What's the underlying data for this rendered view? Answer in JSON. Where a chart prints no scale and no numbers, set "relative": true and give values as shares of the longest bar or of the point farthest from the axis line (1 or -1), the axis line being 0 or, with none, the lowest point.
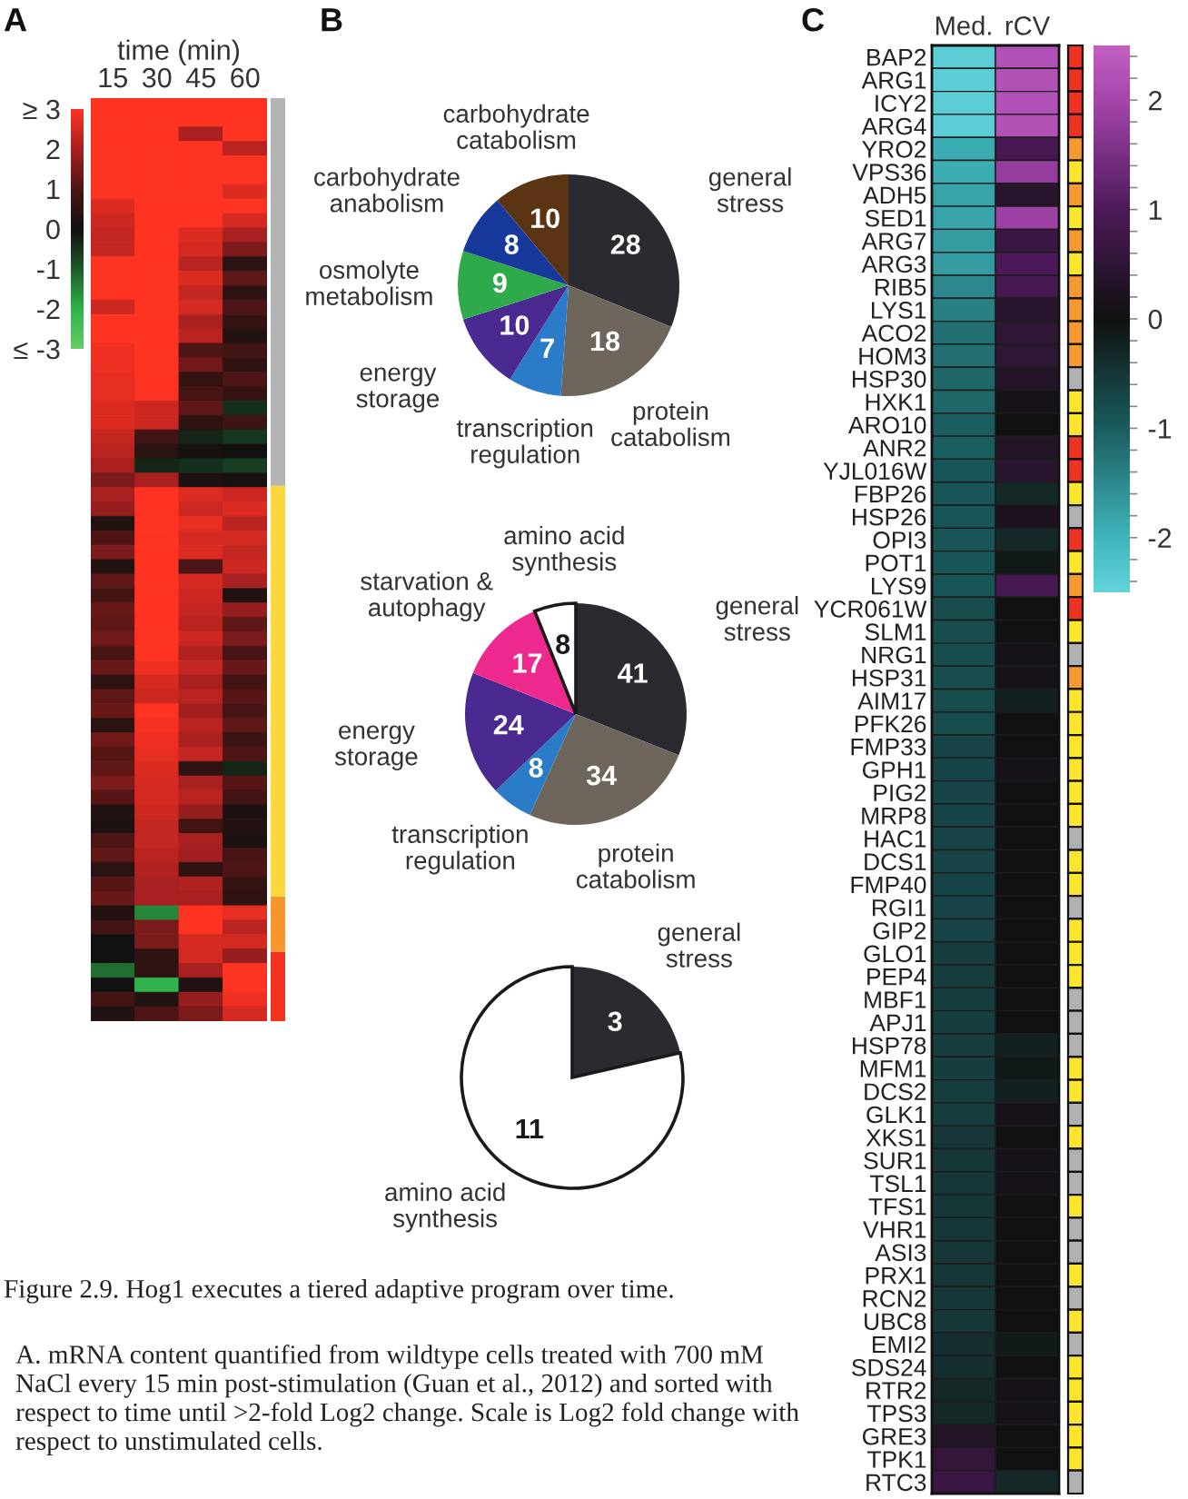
{
  "chart_data": [
    {
      "type": "heatmap",
      "title": "A",
      "xlabel": "time (min)",
      "categories": [
        "15",
        "30",
        "45",
        "60"
      ],
      "y_categories": [
        null,
        null,
        null,
        null,
        null,
        null,
        null,
        null,
        null,
        null,
        null,
        null,
        null,
        null,
        null,
        null,
        null,
        null,
        null,
        null,
        null,
        null,
        null,
        null,
        null,
        null,
        null,
        null,
        null,
        null,
        null,
        null,
        null,
        null,
        null,
        null,
        null,
        null,
        null,
        null,
        null,
        null,
        null,
        null,
        null,
        null,
        null,
        null,
        null,
        null,
        null,
        null,
        null,
        null,
        null,
        null,
        null,
        null,
        null,
        null,
        null,
        null,
        null,
        null
      ],
      "cells": [
        [
          3,
          3,
          3,
          3
        ],
        [
          3,
          3,
          3,
          3
        ],
        [
          3,
          3,
          2,
          3
        ],
        [
          3,
          3,
          3,
          2.2
        ],
        [
          3,
          3,
          3,
          3
        ],
        [
          3,
          3,
          3,
          3
        ],
        [
          3,
          3,
          3,
          2.6
        ],
        [
          2.6,
          3,
          3,
          3
        ],
        [
          2.4,
          3,
          3,
          2.5
        ],
        [
          2.3,
          3,
          2.6,
          2
        ],
        [
          2.3,
          3,
          2.5,
          1.5
        ],
        [
          3,
          3,
          2.2,
          0.4
        ],
        [
          3,
          3,
          2.6,
          1.2
        ],
        [
          3,
          3,
          2.3,
          0.5
        ],
        [
          2.4,
          3,
          2.5,
          1
        ],
        [
          3,
          3,
          2,
          0.6
        ],
        [
          3,
          3,
          2.2,
          0.3
        ],
        [
          2.8,
          3,
          1,
          0.8
        ],
        [
          2.8,
          3,
          1.4,
          0.5
        ],
        [
          2.7,
          3,
          0.6,
          1
        ],
        [
          2.7,
          3,
          0.9,
          0.6
        ],
        [
          2.6,
          2.4,
          1.2,
          -0.4
        ],
        [
          2.6,
          2.4,
          0.5,
          0.7
        ],
        [
          2.3,
          0.8,
          -0.3,
          -0.5
        ],
        [
          2.2,
          0.4,
          0.1,
          0
        ],
        [
          2,
          -0.3,
          -0.4,
          -0.6
        ],
        [
          1.5,
          2,
          0.2,
          0.1
        ],
        [
          2,
          3,
          2.6,
          2.4
        ],
        [
          1.8,
          3,
          2.4,
          2.6
        ],
        [
          0.3,
          3,
          2.7,
          2.2
        ],
        [
          1,
          3,
          2.5,
          2.5
        ],
        [
          1.5,
          3,
          2.6,
          2.3
        ],
        [
          0.3,
          3,
          1,
          2.4
        ],
        [
          1.2,
          3,
          2.5,
          2
        ],
        [
          0.8,
          3,
          2.4,
          0.3
        ],
        [
          1.3,
          3,
          2.3,
          1.8
        ],
        [
          1.2,
          3,
          2.2,
          1.2
        ],
        [
          1.4,
          3,
          2.4,
          1.5
        ],
        [
          0.9,
          3,
          2.1,
          0.9
        ],
        [
          1.3,
          2.8,
          2.3,
          1.3
        ],
        [
          0.5,
          2.5,
          2,
          0.8
        ],
        [
          1.2,
          2.4,
          2.2,
          1.1
        ],
        [
          1.3,
          3,
          1.9,
          0.9
        ],
        [
          0.4,
          2.9,
          2.2,
          1.2
        ],
        [
          1.4,
          2.8,
          2,
          0.7
        ],
        [
          1.1,
          2.7,
          2.3,
          1
        ],
        [
          1.2,
          2.6,
          0.5,
          -0.3
        ],
        [
          1.5,
          2.5,
          2,
          1.1
        ],
        [
          1.1,
          2.5,
          2.2,
          0.8
        ],
        [
          0.3,
          2.4,
          1.8,
          0.2
        ],
        [
          0.2,
          2.3,
          0.8,
          0.3
        ],
        [
          1,
          2.3,
          2,
          0.2
        ],
        [
          1.2,
          2.2,
          1.9,
          0.9
        ],
        [
          0.4,
          2.1,
          0.5,
          1
        ],
        [
          1.1,
          2,
          2.1,
          0.6
        ],
        [
          1.3,
          2,
          2,
          0.5
        ],
        [
          0.3,
          -1.5,
          3,
          2.7
        ],
        [
          0.8,
          1.5,
          3,
          2.2
        ],
        [
          0,
          1.5,
          2.5,
          2.5
        ],
        [
          0,
          0.5,
          2.5,
          1.8
        ],
        [
          -1.2,
          0.5,
          2,
          3
        ],
        [
          0,
          -2,
          0.3,
          3
        ],
        [
          0.8,
          0.3,
          1.8,
          2.8
        ],
        [
          0.3,
          1,
          1.5,
          2.5
        ]
      ],
      "clim": [
        -3,
        3
      ],
      "cticks": [
        {
          "value": -3,
          "label": "≤ -3"
        },
        -2,
        -1,
        0,
        1,
        2,
        {
          "value": 3,
          "label": "≥ 3"
        }
      ],
      "annotations": [
        "Figure 2.9. Hog1 executes a tiered adaptive program over time.",
        "A. mRNA content quantified from wildtype cells treated with 700 mM NaCl every 15 min post-stimulation (Guan et al., 2012) and sorted with respect to time until >2-fold Log2 change. Scale is Log2 fold change with respect to unstimulated cells."
      ]
    },
    {
      "type": "bar",
      "stacked": true,
      "relative": true,
      "categories": [
        null
      ],
      "series": [
        {
          "color": "#f2321e",
          "values": [
            0.075
          ]
        },
        {
          "color": "#f7952e",
          "values": [
            0.06
          ]
        },
        {
          "color": "#fbd63c",
          "values": [
            0.445
          ]
        },
        {
          "color": "#b4b4b4",
          "values": [
            0.42
          ]
        }
      ]
    },
    {
      "type": "pie",
      "title": "B",
      "categories": [
        "general\nstress",
        "protein\ncatabolism",
        "transcription\nregulation",
        "energy\nstorage",
        "osmolyte\nmetabolism",
        "carbohydrate\nanabolism",
        "carbohydrate\ncatabolism"
      ],
      "values": [
        28,
        18,
        7,
        10,
        9,
        8,
        10
      ],
      "colors": [
        "#2b2a30",
        "#6e665c",
        "#2a7cc8",
        "#4a2a90",
        "#2eaa4a",
        "#17399c",
        "#5b3414"
      ],
      "data_labels": true
    },
    {
      "type": "pie",
      "categories": [
        "general\nstress",
        "protein\ncatabolism",
        "transcription\nregulation",
        "energy\nstorage",
        "starvation &\nautophagy",
        "amino acid\nsynthesis"
      ],
      "values": [
        41,
        34,
        8,
        24,
        17,
        8
      ],
      "colors": [
        "#2b2a30",
        "#6e665c",
        "#2a7cc8",
        "#4a2a90",
        "#ef2a8e",
        "#ffffff"
      ],
      "data_labels": true
    },
    {
      "type": "pie",
      "categories": [
        "general\nstress",
        "amino acid\nsynthesis"
      ],
      "values": [
        3,
        11
      ],
      "colors": [
        "#2b2a30",
        "#ffffff"
      ],
      "data_labels": true
    },
    {
      "type": "heatmap",
      "title": "C",
      "categories": [
        "Med.",
        "rCV"
      ],
      "y_categories": [
        "BAP2",
        "ARG1",
        "ICY2",
        "ARG4",
        "YRO2",
        "VPS36",
        "ADH5",
        "SED1",
        "ARG7",
        "ARG3",
        "RIB5",
        "LYS1",
        "ACO2",
        "HOM3",
        "HSP30",
        "HXK1",
        "ARO10",
        "ANR2",
        "YJL016W",
        "FBP26",
        "HSP26",
        "OPI3",
        "POT1",
        "LYS9",
        "YCR061W",
        "SLM1",
        "NRG1",
        "HSP31",
        "AIM17",
        "PFK26",
        "FMP33",
        "GPH1",
        "PIG2",
        "MRP8",
        "HAC1",
        "DCS1",
        "FMP40",
        "RGI1",
        "GIP2",
        "GLO1",
        "PEP4",
        "MBF1",
        "APJ1",
        "HSP78",
        "MFM1",
        "DCS2",
        "GLK1",
        "XKS1",
        "SUR1",
        "TSL1",
        "TFS1",
        "VHR1",
        "ASI3",
        "PRX1",
        "RCN2",
        "UBC8",
        "EMI2",
        "SDS24",
        "RTR2",
        "TPS3",
        "GRE3",
        "TPK1",
        "RTC3"
      ],
      "cells": [
        [
          -2.4,
          2.2
        ],
        [
          -2.4,
          2.2
        ],
        [
          -2.4,
          2.2
        ],
        [
          -2.4,
          2.2
        ],
        [
          -1.9,
          0.9
        ],
        [
          -1.9,
          1.8
        ],
        [
          -1.8,
          0.4
        ],
        [
          -1.8,
          1.9
        ],
        [
          -1.7,
          0.7
        ],
        [
          -1.7,
          1.0
        ],
        [
          -1.5,
          0.9
        ],
        [
          -1.4,
          0.4
        ],
        [
          -1.2,
          0.5
        ],
        [
          -1.2,
          0.5
        ],
        [
          -1.1,
          0.3
        ],
        [
          -1.1,
          0.1
        ],
        [
          -1.0,
          0.0
        ],
        [
          -1.0,
          0.3
        ],
        [
          -0.9,
          0.4
        ],
        [
          -0.9,
          -0.3
        ],
        [
          -0.9,
          0.2
        ],
        [
          -0.9,
          -0.3
        ],
        [
          -0.9,
          -0.1
        ],
        [
          -0.9,
          0.9
        ],
        [
          -0.8,
          0.0
        ],
        [
          -0.8,
          0.0
        ],
        [
          -0.8,
          0.1
        ],
        [
          -0.8,
          0.1
        ],
        [
          -0.8,
          -0.2
        ],
        [
          -0.8,
          0.0
        ],
        [
          -0.7,
          0.0
        ],
        [
          -0.7,
          0.1
        ],
        [
          -0.7,
          0.0
        ],
        [
          -0.7,
          0.0
        ],
        [
          -0.7,
          0.0
        ],
        [
          -0.7,
          0.0
        ],
        [
          -0.7,
          0.0
        ],
        [
          -0.7,
          0.0
        ],
        [
          -0.7,
          0.0
        ],
        [
          -0.6,
          0.0
        ],
        [
          -0.6,
          0.0
        ],
        [
          -0.6,
          0.0
        ],
        [
          -0.6,
          0.0
        ],
        [
          -0.6,
          -0.2
        ],
        [
          -0.6,
          -0.1
        ],
        [
          -0.6,
          -0.2
        ],
        [
          -0.6,
          0.1
        ],
        [
          -0.5,
          0.0
        ],
        [
          -0.5,
          0.1
        ],
        [
          -0.5,
          0.1
        ],
        [
          -0.5,
          0.0
        ],
        [
          -0.5,
          0.0
        ],
        [
          -0.5,
          0.0
        ],
        [
          -0.5,
          0.0
        ],
        [
          -0.5,
          0.0
        ],
        [
          -0.5,
          0.0
        ],
        [
          -0.4,
          -0.1
        ],
        [
          -0.4,
          0.0
        ],
        [
          -0.3,
          0.1
        ],
        [
          -0.3,
          0.1
        ],
        [
          0.3,
          0.0
        ],
        [
          0.6,
          0.0
        ],
        [
          0.7,
          -0.3
        ]
      ],
      "clim": [
        -2.5,
        2.5
      ],
      "cticks": [
        {
          "value": -2.4,
          "label": null
        },
        {
          "value": -2.2,
          "label": null
        },
        -2,
        {
          "value": -1.8,
          "label": null
        },
        {
          "value": -1.6,
          "label": null
        },
        {
          "value": -1.4,
          "label": null
        },
        {
          "value": -1.2,
          "label": null
        },
        -1,
        {
          "value": -0.8,
          "label": null
        },
        {
          "value": -0.6,
          "label": null
        },
        {
          "value": -0.4,
          "label": null
        },
        {
          "value": -0.2,
          "label": null
        },
        0,
        {
          "value": 0.2,
          "label": null
        },
        {
          "value": 0.4,
          "label": null
        },
        {
          "value": 0.6,
          "label": null
        },
        {
          "value": 0.8,
          "label": null
        },
        1,
        {
          "value": 1.2,
          "label": null
        },
        {
          "value": 1.4,
          "label": null
        },
        {
          "value": 1.6,
          "label": null
        },
        {
          "value": 1.8,
          "label": null
        },
        2,
        {
          "value": 2.2,
          "label": null
        },
        {
          "value": 2.4,
          "label": null
        }
      ]
    },
    {
      "type": "other",
      "colors": [
        "#ee3322",
        "#ee3322",
        "#ee3322",
        "#ee3322",
        "#f59a2e",
        "#fce52a",
        "#f59a2e",
        "#fce52a",
        "#f59a2e",
        "#fce52a",
        "#f59a2e",
        "#f59a2e",
        "#f59a2e",
        "#f59a2e",
        "#b0b0b0",
        "#fce52a",
        "#fce52a",
        "#ee3322",
        "#ee3322",
        "#fce52a",
        "#b0b0b0",
        "#ee3322",
        "#fce52a",
        "#f59a2e",
        "#ee3322",
        "#fce52a",
        "#b0b0b0",
        "#f59a2e",
        "#fce52a",
        "#fce52a",
        "#fce52a",
        "#fce52a",
        "#fce52a",
        "#fce52a",
        "#b0b0b0",
        "#fce52a",
        "#fce52a",
        "#b0b0b0",
        "#fce52a",
        "#fce52a",
        "#fce52a",
        "#b0b0b0",
        "#b0b0b0",
        "#b0b0b0",
        "#fce52a",
        "#fce52a",
        "#b0b0b0",
        "#fce52a",
        "#b0b0b0",
        "#b0b0b0",
        "#fce52a",
        "#b0b0b0",
        "#b0b0b0",
        "#fce52a",
        "#b0b0b0",
        "#fce52a",
        "#b0b0b0",
        "#fce52a",
        "#fce52a",
        "#fce52a",
        "#fce52a",
        "#fce52a",
        "#b0b0b0"
      ]
    }
  ]
}
